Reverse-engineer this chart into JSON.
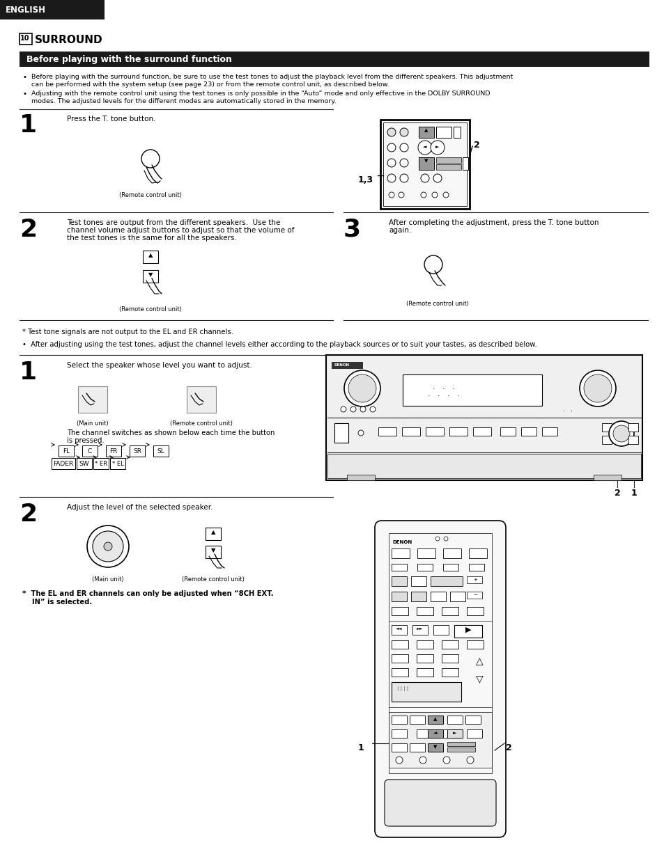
{
  "bg_color": "#ffffff",
  "header_bg": "#1a1a1a",
  "header_text": "ENGLISH",
  "header_text_color": "#ffffff",
  "section_num_text": "10",
  "section_title": "SURROUND",
  "banner_bg": "#1a1a1a",
  "banner_text": "Before playing with the surround function",
  "banner_text_color": "#ffffff",
  "bullet1_line1": "Before playing with the surround function, be sure to use the test tones to adjust the playback level from the different speakers. This adjustment",
  "bullet1_line2": "can be performed with the system setup (see page 23) or from the remote control unit, as described below.",
  "bullet2_line1": "Adjusting with the remote control unit using the test tones is only possible in the “Auto” mode and only effective in the DOLBY SURROUND",
  "bullet2_line2": "modes. The adjusted levels for the different modes are automatically stored in the memory.",
  "step1_text": "Press the T. tone button.",
  "step1_caption": "(Remote control unit)",
  "step2_text_line1": "Test tones are output from the different speakers.  Use the",
  "step2_text_line2": "channel volume adjust buttons to adjust so that the volume of",
  "step2_text_line3": "the test tones is the same for all the speakers.",
  "step2_caption": "(Remote control unit)",
  "step3_text_line1": "After completing the adjustment, press the T. tone button",
  "step3_text_line2": "again.",
  "step3_caption": "(Remote control unit)",
  "note1": "* Test tone signals are not output to the EL and ER channels.",
  "note2": "•  After adjusting using the test tones, adjust the channel levels either according to the playback sources or to suit your tastes, as described below.",
  "step4_text": "Select the speaker whose level you want to adjust.",
  "step4_caption1": "(Main unit)",
  "step4_caption2": "(Remote control unit)",
  "step4_sub1": "The channel switches as shown below each time the button",
  "step4_sub2": "is pressed.",
  "step5_text": "Adjust the level of the selected speaker.",
  "step5_caption1": "(Main unit)",
  "step5_caption2": "(Remote control unit)",
  "note3_line1": "*  The EL and ER channels can only be adjusted when “8CH EXT.",
  "note3_line2": "    IN” is selected.",
  "label_13": "1,3",
  "label_2a": "2",
  "label_2b": "2",
  "label_1b": "1",
  "label_2c": "2"
}
